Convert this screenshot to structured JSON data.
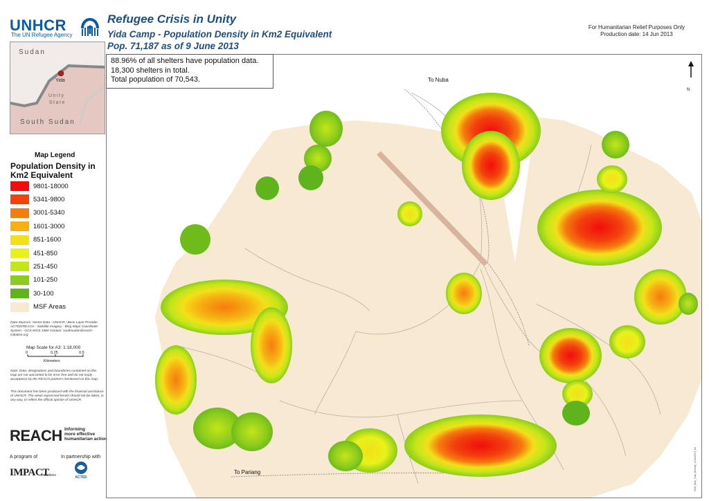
{
  "header": {
    "logo_text": "UNHCR",
    "logo_sub": "The UN Refugee Agency",
    "title": "Refugee Crisis in Unity",
    "subtitle": "Yida Camp - Population Density in Km2 Equivalent",
    "subtitle2": "Pop. 71,187 as of 9 June 2013",
    "purpose": "For Humanitarian Relief Purposes Only",
    "production_date": "Production date: 14 Jun 2013"
  },
  "inset_map": {
    "country_north": "Sudan",
    "country_south": "South Sudan",
    "state": "Unity",
    "state_line2": "State",
    "place": "Yida",
    "colors": {
      "sudan": "#f1ece9",
      "south_sudan": "#e6c8c2",
      "point": "#b0201c"
    }
  },
  "legend": {
    "heading": "Map Legend",
    "title": "Population Density in Km2 Equivalent",
    "items": [
      {
        "label": "9801-18000",
        "color": "#f20d0d"
      },
      {
        "label": "5341-9800",
        "color": "#f2410d"
      },
      {
        "label": "3001-5340",
        "color": "#f57c0f"
      },
      {
        "label": "1601-3000",
        "color": "#f7b012"
      },
      {
        "label": "851-1600",
        "color": "#f2e01a"
      },
      {
        "label": "451-850",
        "color": "#e8f21a"
      },
      {
        "label": "251-450",
        "color": "#c3e619"
      },
      {
        "label": "101-250",
        "color": "#8ccc1c"
      },
      {
        "label": "30-100",
        "color": "#5fb31d"
      },
      {
        "label": "MSF Areas",
        "color": "#f8e9d2"
      }
    ]
  },
  "sources": {
    "text": "Data Sources: Vector Data - UNHCR / Base Layer Provider ACTED/REACH - Satellite Imagery - Bing Maps Coordinate System - GCS WGS 1984 Contact: southsudan@reach-initiative.org",
    "scale_label": "Map Scale for A3: 1:18,000",
    "scale_ticks": [
      "0",
      "0.25",
      "0.5"
    ],
    "scale_unit": "Kilometers",
    "note1": "Note: Data, designations and boundaries contained on this map are not warranted to be error-free and do not imply acceptance by the REACH partners mentioned on this map.",
    "note2": "This document has been produced with the financial assistance of UNHCR. The views expressed herein should not be taken, in any way, to reflect the official opinion of UNHCR."
  },
  "footer": {
    "reach": "REACH",
    "reach_tagline": [
      "Informing",
      "more effective",
      "humanitarian action"
    ],
    "program_of": "A program of",
    "partnership": "In partnership with",
    "impact": "IMPACT",
    "impact_sub": "Initiatives",
    "acted": "ACTED"
  },
  "map": {
    "info_lines": [
      "88.96% of all shelters have population data.",
      "18,300 shelters in total.",
      "Total population of 70,543."
    ],
    "to_nuba": "To Nuba",
    "to_pariang": "To Pariang",
    "north_label": "N",
    "side_text": "SSD_Map_Yida_Density_14Jun2013_A3"
  }
}
